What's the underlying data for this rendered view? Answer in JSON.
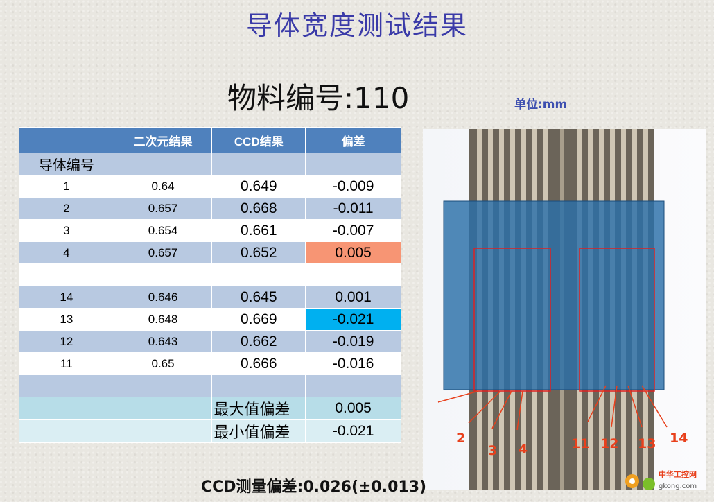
{
  "title": "导体宽度测试结果",
  "material_label": "物料编号:110",
  "unit_label": "单位:mm",
  "table": {
    "headers": [
      "",
      "二次元结果",
      "CCD结果",
      "偏差"
    ],
    "row_header": "导体编号",
    "rows": [
      {
        "id": "1",
        "v2d": "0.64",
        "ccd": "0.649",
        "dev": "-0.009"
      },
      {
        "id": "2",
        "v2d": "0.657",
        "ccd": "0.668",
        "dev": "-0.011"
      },
      {
        "id": "3",
        "v2d": "0.654",
        "ccd": "0.661",
        "dev": "-0.007"
      },
      {
        "id": "4",
        "v2d": "0.657",
        "ccd": "0.652",
        "dev": "0.005"
      },
      {
        "id": "14",
        "v2d": "0.646",
        "ccd": "0.645",
        "dev": "0.001"
      },
      {
        "id": "13",
        "v2d": "0.648",
        "ccd": "0.669",
        "dev": "-0.021"
      },
      {
        "id": "12",
        "v2d": "0.643",
        "ccd": "0.662",
        "dev": "-0.019"
      },
      {
        "id": "11",
        "v2d": "0.65",
        "ccd": "0.666",
        "dev": "-0.016"
      }
    ],
    "max_label": "最大值偏差",
    "max_value": "0.005",
    "min_label": "最小值偏差",
    "min_value": "-0.021"
  },
  "photo_labels": [
    "2",
    "3",
    "4",
    "11",
    "12",
    "13",
    "14"
  ],
  "bottom_text": "CCD测量偏差:0.026(±0.013)",
  "watermark": {
    "name": "中华工控网",
    "url": "gkong.com"
  },
  "colors": {
    "title": "#3a3aa8",
    "header_bg": "#4f81bd",
    "highlight_max": "#f79574",
    "highlight_min": "#00b0f0",
    "annotation": "#e8401c"
  }
}
